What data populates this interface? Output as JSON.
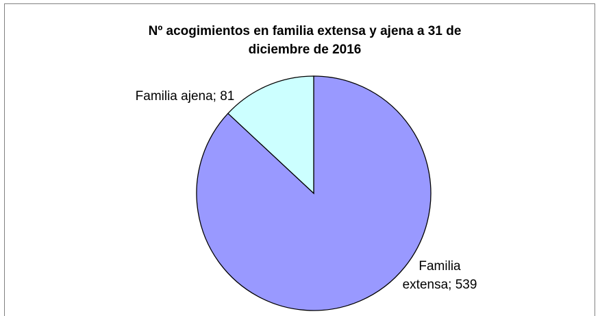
{
  "chart_data": {
    "type": "pie",
    "title": "Nº acogimientos en familia extensa y ajena a 31 de diciembre de 2016",
    "categories": [
      "Familia extensa",
      "Familia ajena"
    ],
    "values": [
      539,
      81
    ],
    "value_labels": [
      "Familia extensa; 539",
      "Familia ajena; 81"
    ],
    "colors": [
      "#9999ff",
      "#ccffff"
    ]
  }
}
